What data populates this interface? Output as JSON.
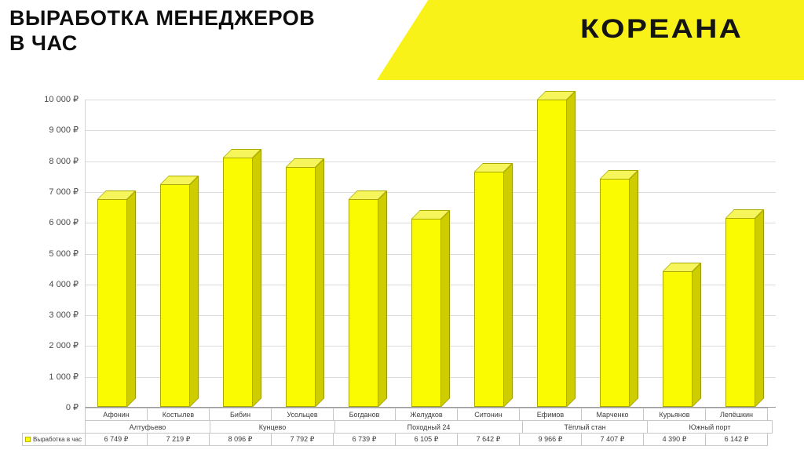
{
  "title": {
    "line1": "ВЫРАБОТКА МЕНЕДЖЕРОВ",
    "line2": "В ЧАС"
  },
  "brand": {
    "logo_text": "КОРЕАНА"
  },
  "colors": {
    "banner": "#F8F218",
    "bar_front": "#FAFA00",
    "bar_side": "#CDCD00",
    "bar_top": "#F6F65C",
    "grid": "#DBDBDB",
    "axis": "#9A9A9A"
  },
  "legend": {
    "label": "Выработка в час",
    "swatch_color": "#FFFF00"
  },
  "chart_data": {
    "type": "bar",
    "bar_style": "3d",
    "title": "ВЫРАБОТКА МЕНЕДЖЕРОВ В ЧАС",
    "xlabel": "",
    "ylabel": "",
    "categories": [
      "Афонин",
      "Костылев",
      "Бибин",
      "Усольцев",
      "Богданов",
      "Желудков",
      "Ситонин",
      "Ефимов",
      "Марченко",
      "Курьянов",
      "Лепёшкин"
    ],
    "groups": [
      {
        "label": "Алтуфьево",
        "span": 2
      },
      {
        "label": "Кунцево",
        "span": 2
      },
      {
        "label": "Походный 24",
        "span": 3
      },
      {
        "label": "Тёплый стан",
        "span": 2
      },
      {
        "label": "Южный порт",
        "span": 2
      }
    ],
    "series": [
      {
        "name": "Выработка в час",
        "values": [
          6749,
          7219,
          8096,
          7792,
          6739,
          6105,
          7642,
          9966,
          7407,
          4390,
          6142
        ]
      }
    ],
    "value_labels": [
      "6 749 ₽",
      "7 219 ₽",
      "8 096 ₽",
      "7 792 ₽",
      "6 739 ₽",
      "6 105 ₽",
      "7 642 ₽",
      "9 966 ₽",
      "7 407 ₽",
      "4 390 ₽",
      "6 142 ₽"
    ],
    "ylim": [
      0,
      10000
    ],
    "ytick_step": 1000,
    "ytick_labels": [
      "0 ₽",
      "1 000 ₽",
      "2 000 ₽",
      "3 000 ₽",
      "4 000 ₽",
      "5 000 ₽",
      "6 000 ₽",
      "7 000 ₽",
      "8 000 ₽",
      "9 000 ₽",
      "10 000 ₽"
    ],
    "grid": true,
    "legend_position": "bottom-left"
  }
}
